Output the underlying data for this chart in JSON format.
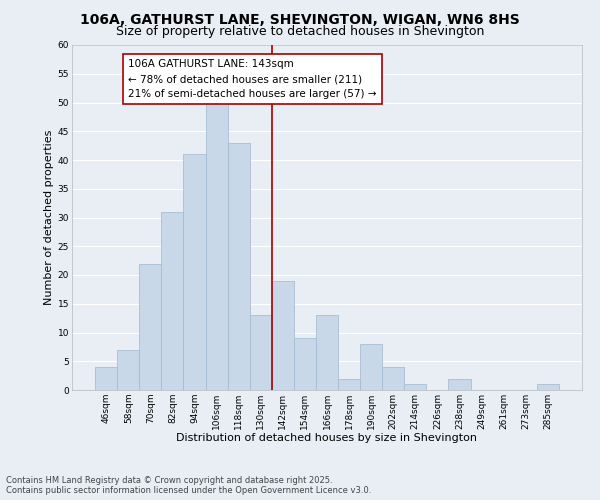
{
  "title": "106A, GATHURST LANE, SHEVINGTON, WIGAN, WN6 8HS",
  "subtitle": "Size of property relative to detached houses in Shevington",
  "xlabel": "Distribution of detached houses by size in Shevington",
  "ylabel": "Number of detached properties",
  "bin_labels": [
    "46sqm",
    "58sqm",
    "70sqm",
    "82sqm",
    "94sqm",
    "106sqm",
    "118sqm",
    "130sqm",
    "142sqm",
    "154sqm",
    "166sqm",
    "178sqm",
    "190sqm",
    "202sqm",
    "214sqm",
    "226sqm",
    "238sqm",
    "249sqm",
    "261sqm",
    "273sqm",
    "285sqm"
  ],
  "bar_values": [
    4,
    7,
    22,
    31,
    41,
    50,
    43,
    13,
    19,
    9,
    13,
    2,
    8,
    4,
    1,
    0,
    2,
    0,
    0,
    0,
    1
  ],
  "bar_color": "#c8d8e8",
  "bar_edge_color": "#a0b8d0",
  "background_color": "#e8eef4",
  "grid_color": "#ffffff",
  "annotation_text": "106A GATHURST LANE: 143sqm\n← 78% of detached houses are smaller (211)\n21% of semi-detached houses are larger (57) →",
  "annotation_box_color": "#ffffff",
  "annotation_box_edge_color": "#aa0000",
  "annotation_text_color": "#000000",
  "vline_color": "#aa0000",
  "vline_x": 7.5,
  "ylim": [
    0,
    60
  ],
  "yticks": [
    0,
    5,
    10,
    15,
    20,
    25,
    30,
    35,
    40,
    45,
    50,
    55,
    60
  ],
  "footer_line1": "Contains HM Land Registry data © Crown copyright and database right 2025.",
  "footer_line2": "Contains public sector information licensed under the Open Government Licence v3.0.",
  "title_fontsize": 10,
  "subtitle_fontsize": 9,
  "xlabel_fontsize": 8,
  "ylabel_fontsize": 8,
  "tick_fontsize": 6.5,
  "footer_fontsize": 6,
  "annotation_fontsize": 7.5
}
